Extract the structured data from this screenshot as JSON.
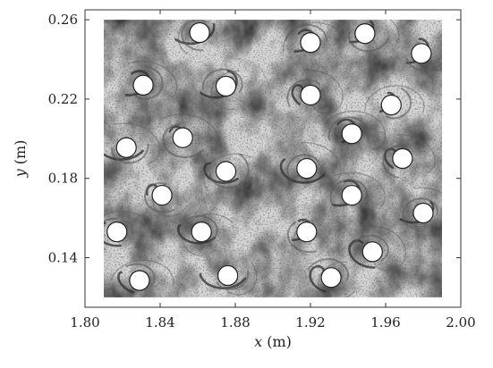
{
  "figure": {
    "xlabel_var": "x",
    "xlabel_unit": " (m)",
    "ylabel_var": "y",
    "ylabel_unit": " (m)"
  },
  "chart_data": {
    "type": "scatter",
    "title": "",
    "xlabel": "x (m)",
    "ylabel": "y (m)",
    "xlim": [
      1.8,
      2.0
    ],
    "ylim": [
      0.115,
      0.265
    ],
    "x_ticks": [
      "1.80",
      "1.84",
      "1.88",
      "1.92",
      "1.96",
      "2.00"
    ],
    "y_ticks": [
      "0.14",
      "0.18",
      "0.22",
      "0.26"
    ],
    "x_tick_values": [
      1.8,
      1.84,
      1.88,
      1.92,
      1.96,
      2.0
    ],
    "y_tick_values": [
      0.14,
      0.18,
      0.22,
      0.26
    ],
    "grid": false,
    "legend": "none",
    "background_texture": "grayscale tracer-particle field showing vortex streaks",
    "tracer_region": {
      "x": [
        1.81,
        1.99
      ],
      "y": [
        0.12,
        0.26
      ]
    },
    "cylinder_diameter": 0.0105,
    "cylinders": [
      {
        "x": 1.861,
        "y": 0.2535
      },
      {
        "x": 1.92,
        "y": 0.2485
      },
      {
        "x": 1.949,
        "y": 0.253
      },
      {
        "x": 1.979,
        "y": 0.243
      },
      {
        "x": 1.831,
        "y": 0.227
      },
      {
        "x": 1.875,
        "y": 0.2265
      },
      {
        "x": 1.92,
        "y": 0.222
      },
      {
        "x": 1.963,
        "y": 0.217
      },
      {
        "x": 1.822,
        "y": 0.1955
      },
      {
        "x": 1.852,
        "y": 0.2005
      },
      {
        "x": 1.942,
        "y": 0.2025
      },
      {
        "x": 1.969,
        "y": 0.19
      },
      {
        "x": 1.875,
        "y": 0.1835
      },
      {
        "x": 1.918,
        "y": 0.185
      },
      {
        "x": 1.841,
        "y": 0.1715
      },
      {
        "x": 1.942,
        "y": 0.1715
      },
      {
        "x": 1.98,
        "y": 0.1625
      },
      {
        "x": 1.817,
        "y": 0.153
      },
      {
        "x": 1.862,
        "y": 0.153
      },
      {
        "x": 1.918,
        "y": 0.153
      },
      {
        "x": 1.953,
        "y": 0.143
      },
      {
        "x": 1.876,
        "y": 0.131
      },
      {
        "x": 1.931,
        "y": 0.13
      },
      {
        "x": 1.829,
        "y": 0.1285
      }
    ]
  }
}
